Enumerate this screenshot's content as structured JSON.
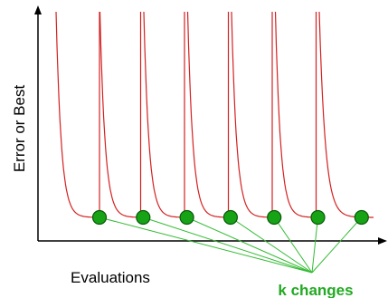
{
  "labels": {
    "y_axis": "Error or Best",
    "x_axis": "Evaluations",
    "annotation": "k changes"
  },
  "colors": {
    "axes": "#000000",
    "curves": "#d42020",
    "markers_fill": "#16a316",
    "markers_stroke": "#0a5a0a",
    "connector_lines": "#33bb33",
    "annotation_text": "#22aa22"
  },
  "diagram": {
    "restart_count": 7,
    "marker_count": 7,
    "connector_count": 7
  }
}
